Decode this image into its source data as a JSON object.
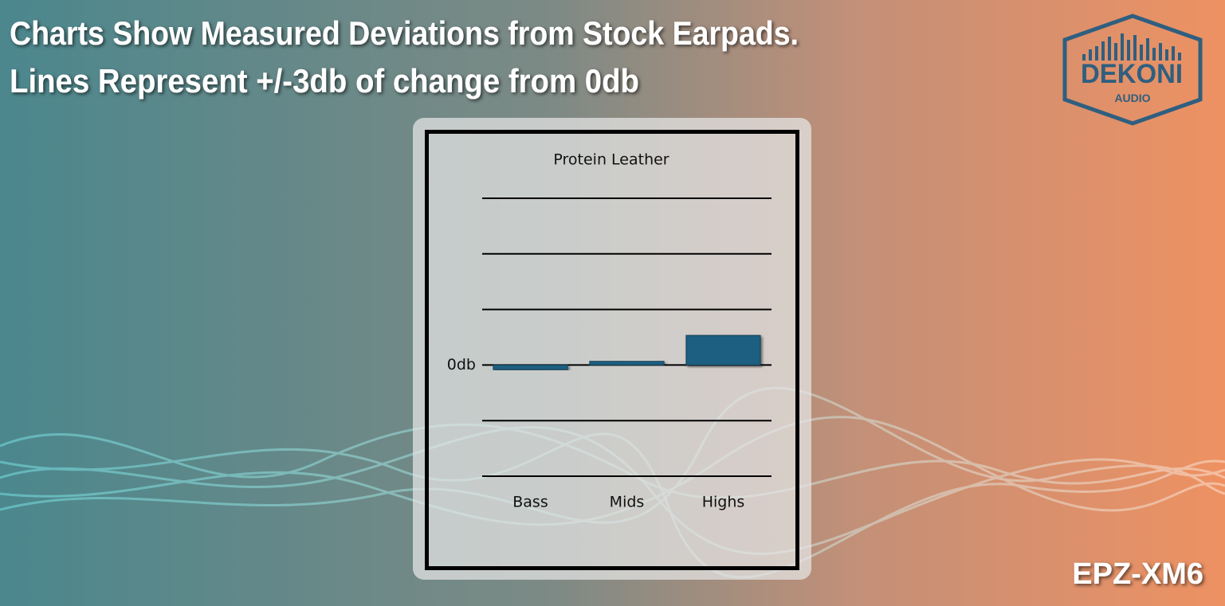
{
  "header": {
    "lines": [
      "Charts Show Measured Deviations from Stock Earpads.",
      "Lines Represent +/-3db of change from 0db"
    ]
  },
  "logo": {
    "brand": "DEKONI",
    "sub": "AUDIO"
  },
  "model": "EPZ-XM6",
  "chart_data": {
    "type": "bar",
    "title": "Protein Leather",
    "categories": [
      "Bass",
      "Mids",
      "Highs"
    ],
    "values": [
      -0.25,
      0.2,
      1.6
    ],
    "color": "#1f5f80",
    "ylim": [
      -6,
      9
    ],
    "yticks": [
      -6,
      -3,
      {
        "value": 0,
        "label": "0db"
      },
      3,
      6,
      9
    ],
    "grid": true
  }
}
